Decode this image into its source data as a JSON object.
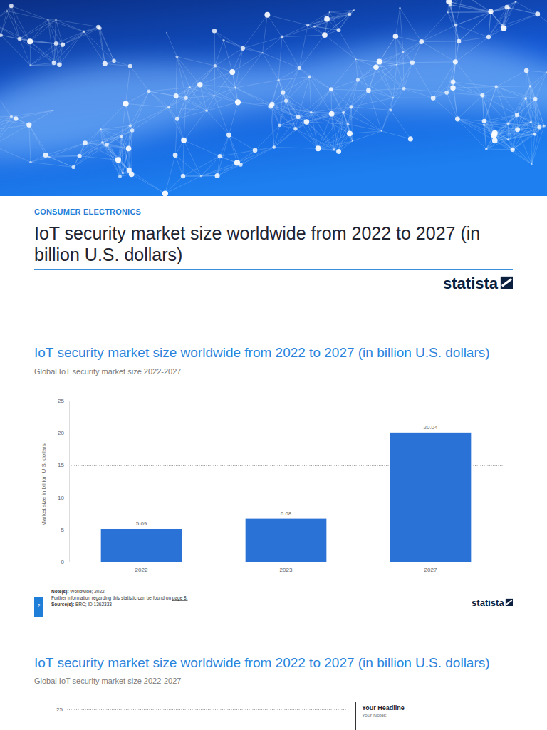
{
  "header": {
    "category": "CONSUMER ELECTRONICS",
    "title": "IoT security market size worldwide from 2022 to 2027 (in billion U.S. dollars)",
    "brand": "statista"
  },
  "chart_data": {
    "type": "bar",
    "title": "IoT security market size worldwide from 2022 to 2027 (in billion U.S. dollars)",
    "subtitle": "Global IoT security market size 2022-2027",
    "y_label": "Market size in billion U.S. dollars",
    "categories": [
      "2022",
      "2023",
      "2027"
    ],
    "values": [
      5.09,
      6.68,
      20.04
    ],
    "color": "#2b72d6",
    "ylim": [
      0,
      25
    ],
    "yticks": [
      0,
      5,
      10,
      15,
      20,
      25
    ],
    "grid": true,
    "data_labels": true
  },
  "notes": {
    "notes_label": "Note(s):",
    "notes": "Worldwide; 2022",
    "further": "Further information regarding this statistic can be found on",
    "further_link": "page 8.",
    "sources_label": "Source(s):",
    "sources": "BRC;",
    "source_id": "ID 1362333"
  },
  "page_number": "2",
  "footer_brand": "statista",
  "next_chart": {
    "title": "IoT security market size worldwide from 2022 to 2027 (in billion U.S. dollars)",
    "subtitle": "Global IoT security market size 2022-2027",
    "yticks": [
      25
    ],
    "headline": "Your Headline",
    "notes_label": "Your Notes:"
  }
}
